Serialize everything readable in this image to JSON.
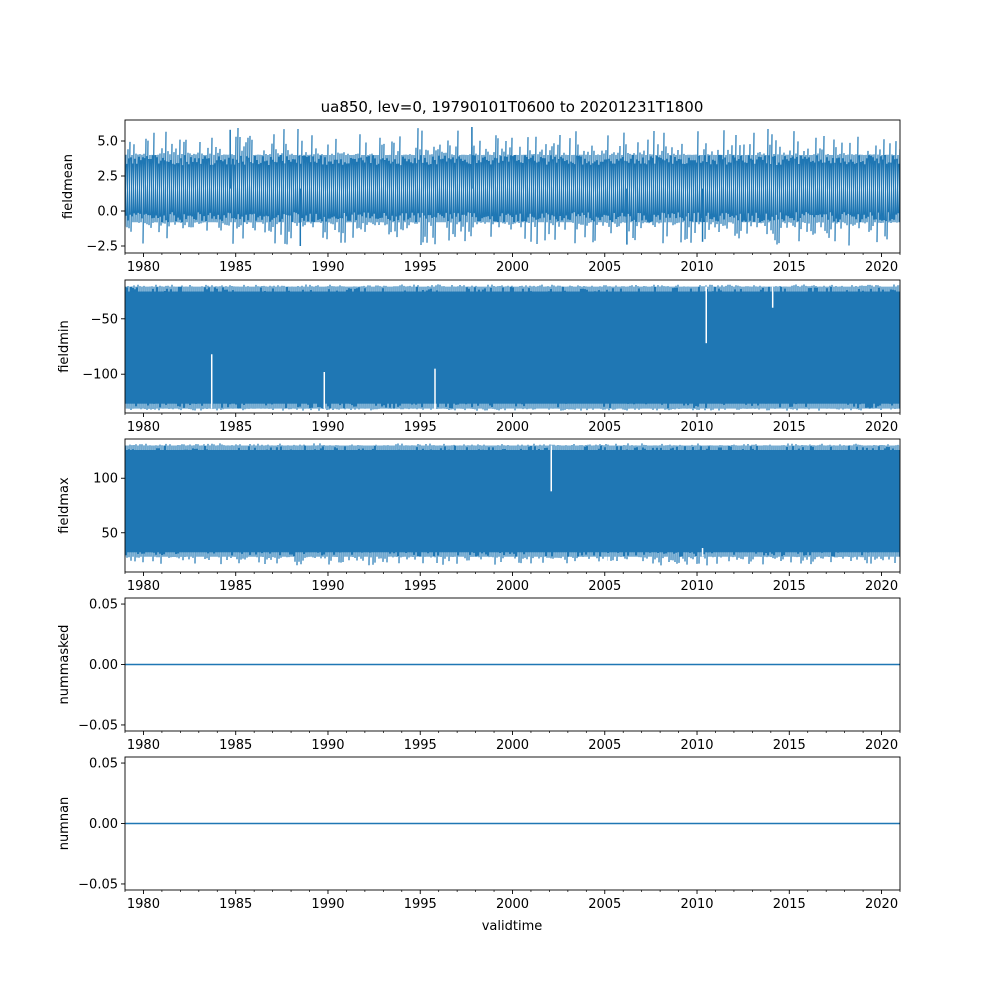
{
  "chart_data": {
    "type": "line",
    "title": "ua850, lev=0, 19790101T0600 to 20201231T1800",
    "xlabel": "validtime",
    "xlim": [
      1979.0,
      2021.0
    ],
    "x_major_ticks": [
      1980,
      1985,
      1990,
      1995,
      2000,
      2005,
      2010,
      2015,
      2020
    ],
    "x_tick_labels": [
      "1980",
      "1985",
      "1990",
      "1995",
      "2000",
      "2005",
      "2010",
      "2015",
      "2020"
    ],
    "series_color": "#1f77b4",
    "panels": [
      {
        "name": "fieldmean",
        "ylabel": "fieldmean",
        "ylim": [
          -3.0,
          6.5
        ],
        "yticks": [
          -2.5,
          0.0,
          2.5,
          5.0
        ],
        "ytick_labels": [
          "−2.5",
          "0.0",
          "2.5",
          "5.0"
        ],
        "envelope": {
          "base_low": -0.8,
          "base_high": 4.0,
          "overall_min": -2.5,
          "overall_max": 6.0
        },
        "spikes": [
          {
            "x": 1984.7,
            "value": 5.8
          },
          {
            "x": 1997.8,
            "value": 6.0
          },
          {
            "x": 1988.5,
            "value": -2.5
          },
          {
            "x": 2006.2,
            "value": -2.4
          },
          {
            "x": 2010.3,
            "value": -2.2
          }
        ]
      },
      {
        "name": "fieldmin",
        "ylabel": "fieldmin",
        "ylim": [
          -135,
          -15
        ],
        "yticks": [
          -100,
          -50
        ],
        "ytick_labels": [
          "−100",
          "−50"
        ],
        "envelope": {
          "base_low": -131,
          "base_high": -21,
          "overall_min": -133,
          "overall_max": -19
        },
        "spikes": [
          {
            "x": 1983.7,
            "value": -82
          },
          {
            "x": 2010.5,
            "value": -72
          },
          {
            "x": 2014.1,
            "value": -40
          },
          {
            "x": 1989.8,
            "value": -98
          },
          {
            "x": 1995.8,
            "value": -95
          }
        ]
      },
      {
        "name": "fieldmax",
        "ylabel": "fieldmax",
        "ylim": [
          14,
          136
        ],
        "yticks": [
          50,
          100
        ],
        "ytick_labels": [
          "50",
          "100"
        ],
        "envelope": {
          "base_low": 28,
          "base_high": 130,
          "overall_min": 20,
          "overall_max": 132
        },
        "spikes": [
          {
            "x": 2002.1,
            "value": 88
          },
          {
            "x": 1993.4,
            "value": 25
          },
          {
            "x": 2005.1,
            "value": 20
          },
          {
            "x": 2010.3,
            "value": 36
          }
        ]
      },
      {
        "name": "nummasked",
        "ylabel": "nummasked",
        "ylim": [
          -0.055,
          0.055
        ],
        "yticks": [
          -0.05,
          0.0,
          0.05
        ],
        "ytick_labels": [
          "−0.05",
          "0.00",
          "0.05"
        ],
        "constant_value": 0.0
      },
      {
        "name": "numnan",
        "ylabel": "numnan",
        "ylim": [
          -0.055,
          0.055
        ],
        "yticks": [
          -0.05,
          0.0,
          0.05
        ],
        "ytick_labels": [
          "−0.05",
          "0.00",
          "0.05"
        ],
        "constant_value": 0.0
      }
    ]
  }
}
